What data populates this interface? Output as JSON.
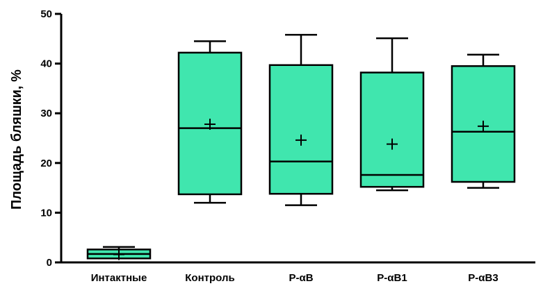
{
  "chart_data": {
    "type": "box",
    "ylabel": "Площадь бляшки, %",
    "ylim": [
      0,
      50
    ],
    "yticks": [
      0,
      10,
      20,
      30,
      40,
      50
    ],
    "grid": false,
    "box_color": "#40E6AE",
    "categories": [
      "Интактные",
      "Контроль",
      "P-αB",
      "P-αB1",
      "P-αB3"
    ],
    "boxes": [
      {
        "min": 0.8,
        "q1": 0.8,
        "median": 1.7,
        "q3": 2.6,
        "max": 3.1,
        "mean": 1.6
      },
      {
        "min": 12.0,
        "q1": 13.7,
        "median": 27.0,
        "q3": 42.2,
        "max": 44.5,
        "mean": 27.8
      },
      {
        "min": 11.5,
        "q1": 13.8,
        "median": 20.3,
        "q3": 39.7,
        "max": 45.8,
        "mean": 24.6
      },
      {
        "min": 14.5,
        "q1": 15.2,
        "median": 17.6,
        "q3": 38.2,
        "max": 45.1,
        "mean": 23.8
      },
      {
        "min": 15.0,
        "q1": 16.2,
        "median": 26.3,
        "q3": 39.5,
        "max": 41.8,
        "mean": 27.4
      }
    ]
  }
}
